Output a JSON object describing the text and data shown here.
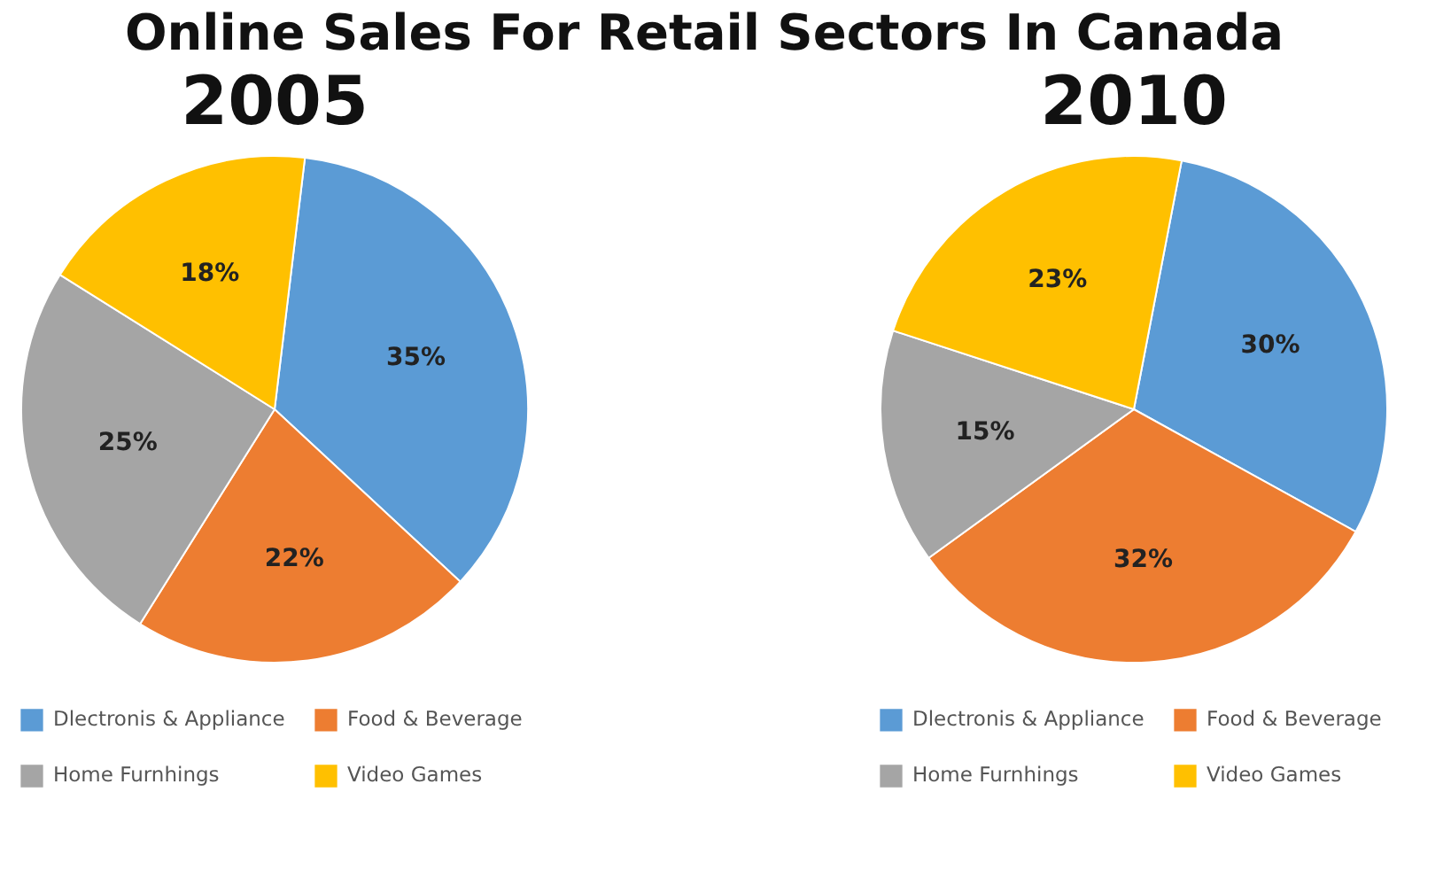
{
  "chart_data": [
    {
      "type": "pie",
      "title": "2005",
      "annotations": [
        "Online Sales For Retail Sectors In Canada"
      ],
      "categories": [
        "Dlectronis & Appliance",
        "Food & Beverage",
        "Home Furnhings",
        "Video Games"
      ],
      "values": [
        35,
        22,
        25,
        18
      ],
      "value_labels": [
        "35%",
        "22%",
        "25%",
        "18%"
      ],
      "colors": [
        "#5b9bd5",
        "#ed7d31",
        "#a5a5a5",
        "#ffc000"
      ],
      "legend": "bottom"
    },
    {
      "type": "pie",
      "title": "2010",
      "categories": [
        "Dlectronis & Appliance",
        "Food & Beverage",
        "Home Furnhings",
        "Video Games"
      ],
      "values": [
        30,
        32,
        15,
        23
      ],
      "value_labels": [
        "30%",
        "32%",
        "15%",
        "23%"
      ],
      "colors": [
        "#5b9bd5",
        "#ed7d31",
        "#a5a5a5",
        "#ffc000"
      ],
      "legend": "bottom"
    }
  ]
}
